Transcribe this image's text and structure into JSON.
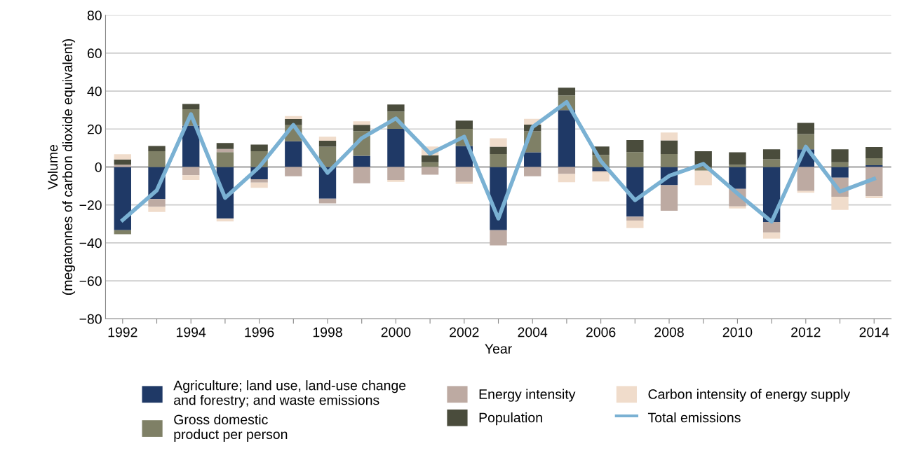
{
  "chart_data": {
    "type": "bar",
    "stacked": true,
    "xlabel": "Year",
    "ylabel": "Volume\n(megatonnes of carbon dioxide equivalent)",
    "categories": [
      "1992",
      null,
      "1994",
      null,
      "1996",
      null,
      "1998",
      null,
      "2000",
      null,
      "2002",
      null,
      "2004",
      null,
      "2006",
      null,
      "2008",
      null,
      "2010",
      null,
      "2012",
      null,
      "2014"
    ],
    "series": [
      {
        "name": "Agriculture; land use, land-use change\nand forestry; and waste emissions",
        "color": "#1f3966",
        "values": [
          -33.3,
          -16.9,
          21.8,
          -27.2,
          -6.5,
          13.6,
          -16.7,
          5.9,
          20.1,
          null,
          11.1,
          -33.3,
          7.7,
          30,
          -2.2,
          -26.2,
          -9.6,
          null,
          -11.5,
          -29,
          9.3,
          -5.6,
          0.9
        ]
      },
      {
        "name": "Gross domestic\nproduct per person",
        "color": "#7f8066",
        "values": [
          -2.1,
          8.3,
          8.6,
          7.8,
          8.3,
          8.4,
          10.7,
          13,
          9.1,
          2.5,
          9,
          6.8,
          11.1,
          7.7,
          6.4,
          7.8,
          6.8,
          -1.9,
          1.2,
          4.1,
          8,
          2.5,
          3.7
        ]
      },
      {
        "name": "Energy intensity",
        "color": "#bdaaa2",
        "values": [
          1.2,
          -4.1,
          -4.3,
          1.7,
          -1.7,
          -4.9,
          -2.5,
          -8.6,
          -6.8,
          -4.1,
          -7.8,
          -8,
          -4.9,
          -3.7,
          -0.6,
          -2,
          -13.5,
          null,
          -9.3,
          -5.6,
          -12.6,
          -10.1,
          -15.4
        ]
      },
      {
        "name": "Population",
        "color": "#4a4c3c",
        "values": [
          2.8,
          2.8,
          2.8,
          3.1,
          3.5,
          3.3,
          3.1,
          3.3,
          3.7,
          3.7,
          4.3,
          3.9,
          3.5,
          4.1,
          4.4,
          6.4,
          7.2,
          8.3,
          6.5,
          5.2,
          5.9,
          6.8,
          5.9
        ]
      },
      {
        "name": "Carbon intensity of energy supply",
        "color": "#f0dccb",
        "values": [
          2.7,
          -2.7,
          -2.5,
          -1.5,
          -2.8,
          1.5,
          2.2,
          1.9,
          -1,
          4.6,
          -1.1,
          4.4,
          3.1,
          -4.3,
          -4.9,
          -4,
          4.2,
          -7.7,
          -1.1,
          -3.1,
          -1,
          -6.9,
          -1
        ]
      },
      {
        "name": "Total emissions",
        "type": "line",
        "color": "#7ab1d3",
        "values": [
          -28,
          -12.3,
          27.8,
          -16.3,
          0,
          22.2,
          -3.1,
          15.2,
          25.6,
          7,
          16,
          -27.2,
          21,
          34.2,
          3.1,
          -17.5,
          -4.7,
          1.6,
          -14,
          -28.8,
          10.7,
          -13,
          -6.2
        ]
      }
    ],
    "ylim": [
      -80,
      80
    ],
    "yticks": [
      {
        "value": -80,
        "label": "−80"
      },
      {
        "value": -60,
        "label": "−60"
      },
      {
        "value": -40,
        "label": "−40"
      },
      {
        "value": -20,
        "label": "−20"
      },
      0,
      20,
      40,
      60,
      80
    ],
    "grid": "y",
    "legend": "bottom",
    "marker": "none",
    "line_style": "solid"
  }
}
